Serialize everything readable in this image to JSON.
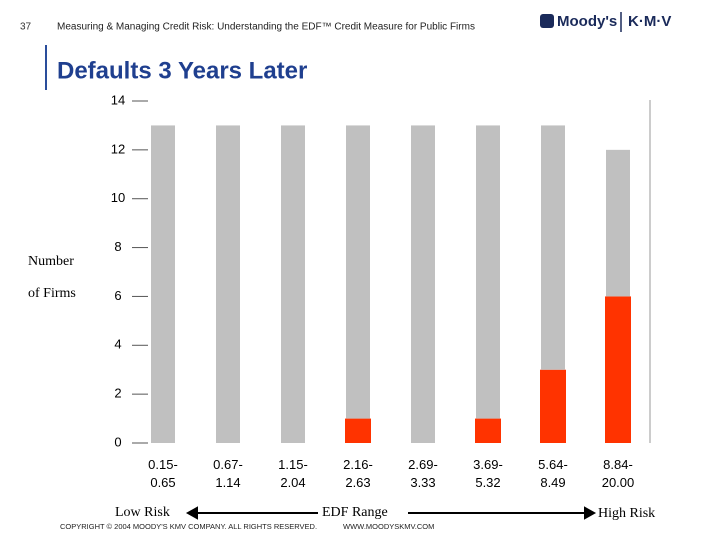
{
  "header": {
    "slide_number": "37",
    "text": "Measuring & Managing Credit Risk: Understanding the EDF™ Credit Measure for Public Firms",
    "logo_left": "Moody's",
    "logo_right": "K·M·V"
  },
  "chart_data": {
    "type": "stacked_bar",
    "title": "Defaults 3 Years Later",
    "ylabel": [
      "Number",
      "of Firms"
    ],
    "xlabel": "EDF Range",
    "low_label": "Low Risk",
    "high_label": "High Risk",
    "categories": [
      "0.15-\n0.65",
      "0.67-\n1.14",
      "1.15-\n2.04",
      "2.16-\n2.63",
      "2.69-\n3.33",
      "3.69-\n5.32",
      "5.64-\n8.49",
      "8.84-\n20.00"
    ],
    "series": [
      {
        "color": "#ff3300",
        "values": [
          0,
          0,
          0,
          1,
          0,
          1,
          3,
          6
        ]
      },
      {
        "color": "#c0c0c0",
        "values": [
          13,
          13,
          13,
          12,
          13,
          12,
          10,
          6
        ]
      }
    ],
    "ylim": [
      0,
      14
    ],
    "yticks": [
      0,
      2,
      4,
      6,
      8,
      10,
      12,
      14
    ],
    "grid": false
  },
  "footer": {
    "copyright": "COPYRIGHT © 2004 MOODY'S KMV COMPANY. ALL RIGHTS RESERVED.",
    "url": "WWW.MOODYSKMV.COM"
  }
}
